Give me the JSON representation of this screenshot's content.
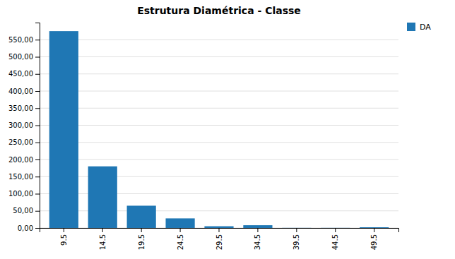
{
  "chart_data": {
    "type": "bar",
    "title": "Estrutura Diamétrica - Classe",
    "categories": [
      "9.5",
      "14.5",
      "19.5",
      "24.5",
      "29.5",
      "34.5",
      "39.5",
      "44.5",
      "49.5"
    ],
    "series": [
      {
        "name": "DA",
        "values": [
          575.0,
          180.0,
          65.0,
          28.0,
          5.0,
          8.0,
          0.3,
          0.3,
          2.0
        ]
      }
    ],
    "ylim": [
      0,
      600
    ],
    "yticks": [
      {
        "value": 0.0,
        "label": "0,00"
      },
      {
        "value": 50.0,
        "label": "50,00"
      },
      {
        "value": 100.0,
        "label": "100,00"
      },
      {
        "value": 150.0,
        "label": "150,00"
      },
      {
        "value": 200.0,
        "label": "200,00"
      },
      {
        "value": 250.0,
        "label": "250,00"
      },
      {
        "value": 300.0,
        "label": "300,00"
      },
      {
        "value": 350.0,
        "label": "350,00"
      },
      {
        "value": 400.0,
        "label": "400,00"
      },
      {
        "value": 450.0,
        "label": "450,00"
      },
      {
        "value": 500.0,
        "label": "500,00"
      },
      {
        "value": 550.0,
        "label": "550,00"
      }
    ],
    "grid": true,
    "legend": "upper right"
  }
}
